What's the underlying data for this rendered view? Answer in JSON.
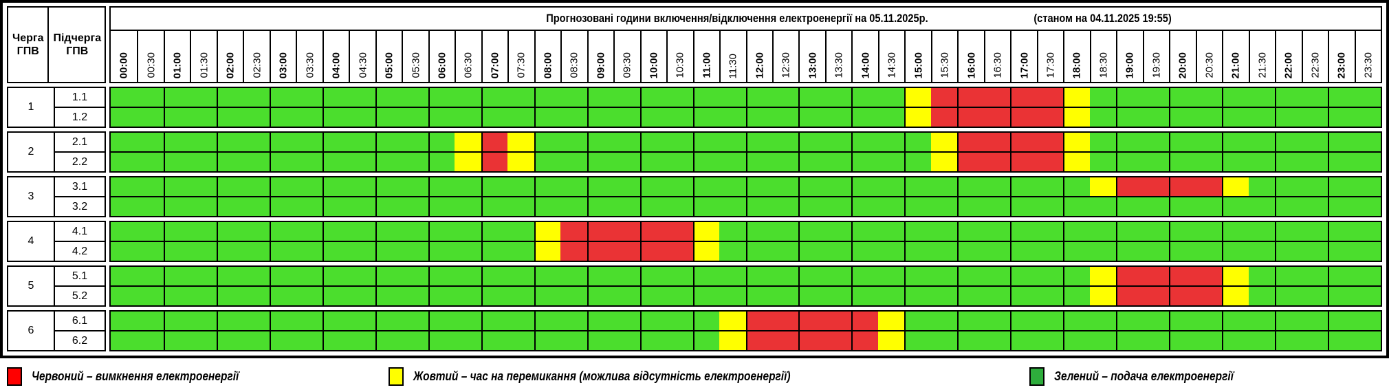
{
  "chart_data": {
    "type": "heatmap",
    "title": "Прогнозовані години включення/відключення електроенергії на 05.11.2025р.",
    "status_note": "(станом на 04.11.2025 19:55)",
    "col1_header": "Черга ГПВ",
    "col2_header": "Підчерга ГПВ",
    "columns": [
      "00:00",
      "00:30",
      "01:00",
      "01:30",
      "02:00",
      "02:30",
      "03:00",
      "03:30",
      "04:00",
      "04:30",
      "05:00",
      "05:30",
      "06:00",
      "06:30",
      "07:00",
      "07:30",
      "08:00",
      "08:30",
      "09:00",
      "09:30",
      "10:00",
      "10:30",
      "11:00",
      "11:30",
      "12:00",
      "12:30",
      "13:00",
      "13:30",
      "14:00",
      "14:30",
      "15:00",
      "15:30",
      "16:00",
      "16:30",
      "17:00",
      "17:30",
      "18:00",
      "18:30",
      "19:00",
      "19:30",
      "20:00",
      "20:30",
      "21:00",
      "21:30",
      "22:00",
      "22:30",
      "23:00",
      "23:30"
    ],
    "slot_legend": {
      "g": "подача електроенергії",
      "y": "час на перемикання (можлива відсутність електроенергії)",
      "r": "вимкнення електроенергії"
    },
    "groups": [
      {
        "queue": "1",
        "rows": [
          {
            "label": "1.1",
            "slots": "ggggggggggggggggggggggggggggggyrrrrryggggggggggg"
          },
          {
            "label": "1.2",
            "slots": "ggggggggggggggggggggggggggggggyrrrrryggggggggggg"
          }
        ]
      },
      {
        "queue": "2",
        "rows": [
          {
            "label": "2.1",
            "slots": "gggggggggggggyrygggggggggggggggyrrrryggggggggggg"
          },
          {
            "label": "2.2",
            "slots": "gggggggggggggyrygggggggggggggggyrrrryggggggggggg"
          }
        ]
      },
      {
        "queue": "3",
        "rows": [
          {
            "label": "3.1",
            "slots": "gggggggggggggggggggggggggggggggggggggyrrrryggggg"
          },
          {
            "label": "3.2",
            "slots": "gggggggggggggggggggggggggggggggggggggggggggggggg"
          }
        ]
      },
      {
        "queue": "4",
        "rows": [
          {
            "label": "4.1",
            "slots": "ggggggggggggggggyrrrrryggggggggggggggggggggggggg"
          },
          {
            "label": "4.2",
            "slots": "ggggggggggggggggyrrrrryggggggggggggggggggggggggg"
          }
        ]
      },
      {
        "queue": "5",
        "rows": [
          {
            "label": "5.1",
            "slots": "gggggggggggggggggggggggggggggggggggggyrrrryggggg"
          },
          {
            "label": "5.2",
            "slots": "gggggggggggggggggggggggggggggggggggggyrrrryggggg"
          }
        ]
      },
      {
        "queue": "6",
        "rows": [
          {
            "label": "6.1",
            "slots": "gggggggggggggggggggggggyrrrrrygggggggggggggggggg"
          },
          {
            "label": "6.2",
            "slots": "gggggggggggggggggggggggyrrrrrygggggggggggggggggg"
          }
        ]
      }
    ]
  },
  "colors": {
    "cell_on": "#4BDE2D",
    "cell_switch": "#FFFF00",
    "cell_off": "#EA3335",
    "legend_off": "#FF0000",
    "legend_switch": "#FFFF00",
    "legend_on": "#2EAD3C",
    "grid_line": "#000000"
  },
  "legend": {
    "items": [
      {
        "key": "legend_off",
        "label": "Червоний – вимкнення електроенергії"
      },
      {
        "key": "legend_switch",
        "label": "Жовтий – час на перемикання (можлива відсутність електроенергії)"
      },
      {
        "key": "legend_on",
        "label": "Зелений – подача електроенергії"
      }
    ]
  }
}
